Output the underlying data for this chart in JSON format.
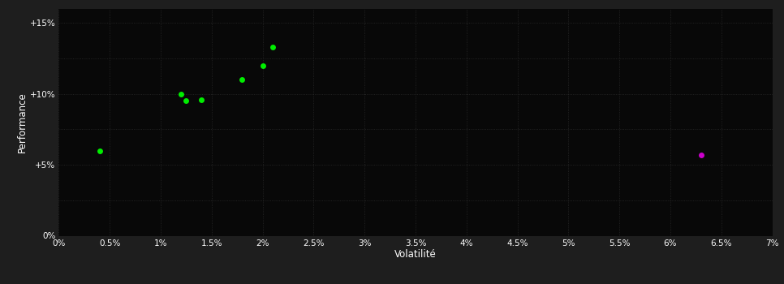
{
  "background_color": "#1e1e1e",
  "plot_bg_color": "#080808",
  "grid_color": "#2a2a2a",
  "grid_color_minor": "#1a1a1a",
  "xlabel": "Volatilité",
  "ylabel": "Performance",
  "xlim": [
    0,
    0.07
  ],
  "ylim": [
    0,
    0.16
  ],
  "xticks": [
    0.0,
    0.005,
    0.01,
    0.015,
    0.02,
    0.025,
    0.03,
    0.035,
    0.04,
    0.045,
    0.05,
    0.055,
    0.06,
    0.065,
    0.07
  ],
  "yticks_labeled": [
    0.0,
    0.05,
    0.1,
    0.15
  ],
  "yticks_all": [
    0.0,
    0.025,
    0.05,
    0.075,
    0.1,
    0.125,
    0.15
  ],
  "green_points": [
    [
      0.004,
      0.06
    ],
    [
      0.012,
      0.1
    ],
    [
      0.0125,
      0.095
    ],
    [
      0.014,
      0.096
    ],
    [
      0.018,
      0.11
    ],
    [
      0.02,
      0.12
    ],
    [
      0.021,
      0.133
    ]
  ],
  "magenta_points": [
    [
      0.063,
      0.057
    ]
  ],
  "green_color": "#00ee00",
  "magenta_color": "#cc00cc",
  "text_color": "#ffffff",
  "tick_label_size": 7.5,
  "axis_label_size": 8.5,
  "marker_size": 5
}
